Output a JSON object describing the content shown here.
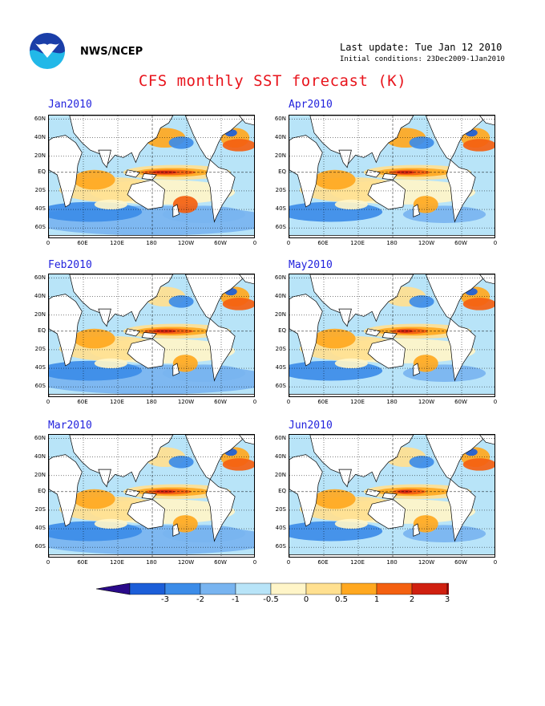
{
  "header": {
    "agency": "NWS/NCEP",
    "last_update": "Last update: Tue Jan 12 2010",
    "initial_conditions": "Initial conditions: 23Dec2009-1Jan2010",
    "title": "CFS monthly SST forecast (K)",
    "logo_icon": "noaa-logo"
  },
  "axes": {
    "lat_labels": [
      "60N",
      "40N",
      "20N",
      "EQ",
      "20S",
      "40S",
      "60S"
    ],
    "lon_labels": [
      "0",
      "60E",
      "120E",
      "180",
      "120W",
      "60W",
      "0"
    ]
  },
  "panels": [
    {
      "title": "Jan2010"
    },
    {
      "title": "Apr2010"
    },
    {
      "title": "Feb2010"
    },
    {
      "title": "May2010"
    },
    {
      "title": "Mar2010"
    },
    {
      "title": "Jun2010"
    }
  ],
  "colorbar": {
    "ticks": [
      "-3",
      "-2",
      "-1",
      "-0.5",
      "0",
      "0.5",
      "1",
      "2",
      "3"
    ],
    "colors": [
      "#2a0a8a",
      "#1c5ed8",
      "#3c8ce8",
      "#78b4f0",
      "#b8e4f8",
      "#fff5c8",
      "#ffe090",
      "#ffa820",
      "#f46010",
      "#d02010",
      "#a00a0a",
      "#6a3a28"
    ]
  }
}
